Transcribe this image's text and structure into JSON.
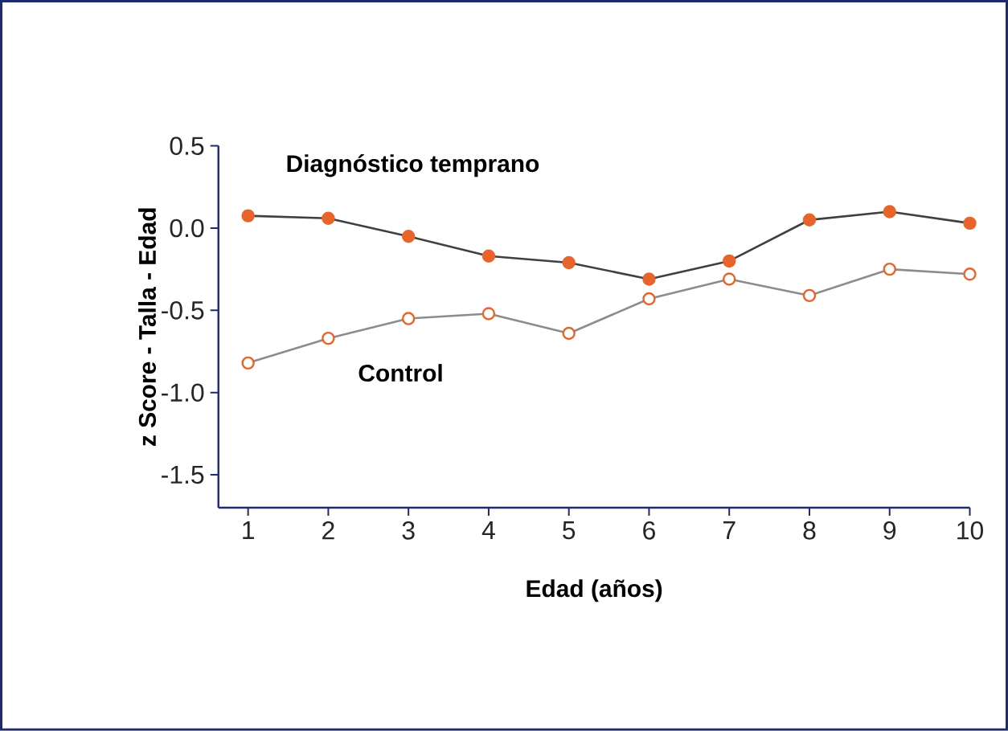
{
  "chart_data": {
    "type": "line",
    "xlabel": "Edad (años)",
    "ylabel": "z Score - Talla - Edad",
    "x": [
      1,
      2,
      3,
      4,
      5,
      6,
      7,
      8,
      9,
      10
    ],
    "series": [
      {
        "name": "Diagnóstico temprano",
        "color": "#e8642a",
        "values": [
          0.075,
          0.06,
          -0.05,
          -0.17,
          -0.21,
          -0.31,
          -0.2,
          0.05,
          0.1,
          0.03
        ]
      },
      {
        "name": "Control",
        "color": "#e8642a",
        "values": [
          -0.82,
          -0.67,
          -0.55,
          -0.52,
          -0.64,
          -0.43,
          -0.31,
          -0.41,
          -0.25,
          -0.28
        ]
      }
    ],
    "xlim": [
      0.63,
      10
    ],
    "ylim": [
      -1.7,
      0.5
    ],
    "xticks": [
      1,
      2,
      3,
      4,
      5,
      6,
      7,
      8,
      9,
      10
    ],
    "yticks": [
      {
        "value": -1.5,
        "label": "-1.5"
      },
      {
        "value": -1,
        "label": "-1.0"
      },
      {
        "value": -0.5,
        "label": "-0.5"
      },
      {
        "value": 0,
        "label": "0.0"
      },
      {
        "value": 0.5,
        "label": "0.5"
      }
    ],
    "grid": false,
    "legend": false,
    "marker": "circle",
    "line_style": "solid"
  }
}
